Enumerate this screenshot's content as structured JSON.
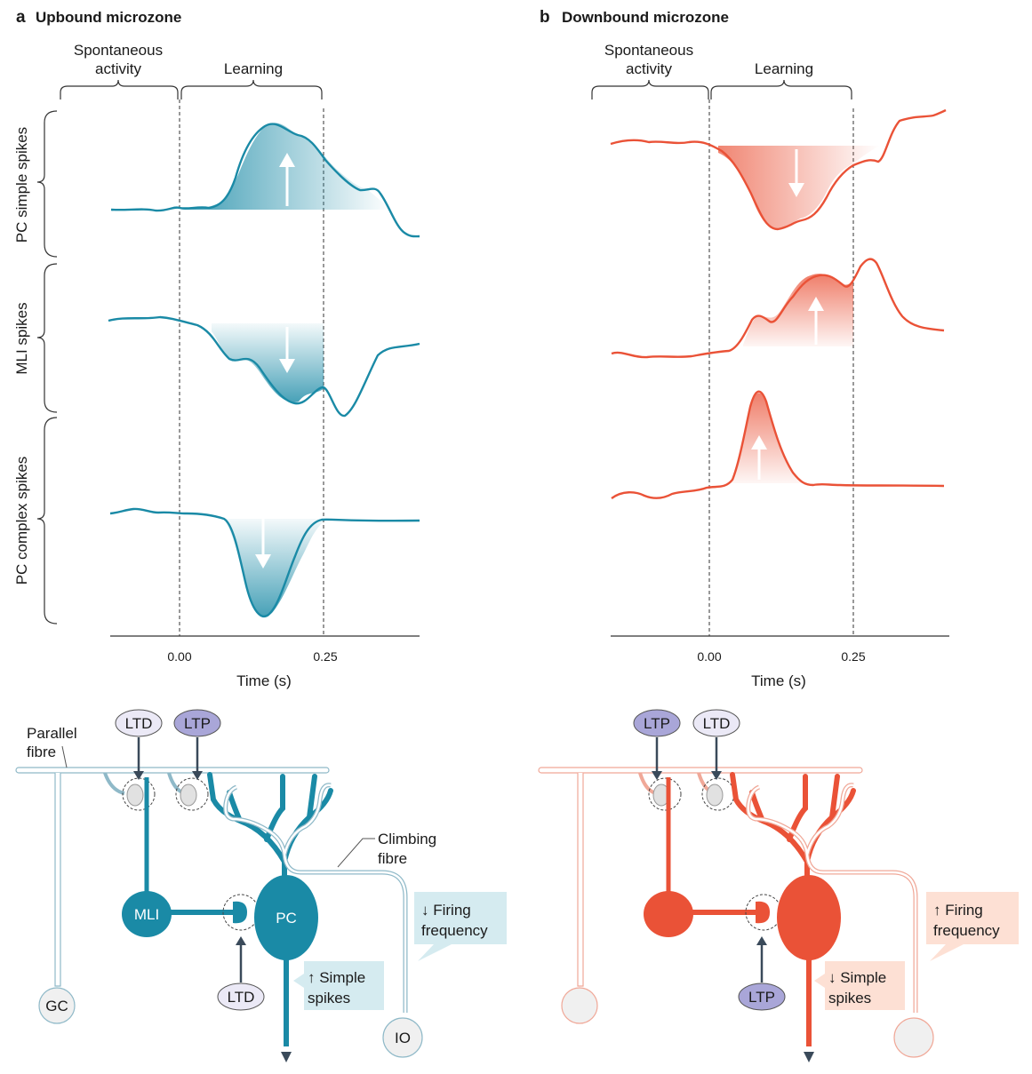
{
  "panels": [
    {
      "letter": "a",
      "title": "Upbound microzone",
      "phase_labels": [
        "Spontaneous",
        "activity",
        "Learning"
      ],
      "row_labels": [
        "PC simple spikes",
        "MLI spikes",
        "PC complex spikes"
      ],
      "x_ticks": [
        "0.00",
        "0.25"
      ],
      "x_label": "Time (s)",
      "circuit": {
        "parallel_fibre": [
          "Parallel",
          "fibre"
        ],
        "climbing_fibre": [
          "Climbing",
          "fibre"
        ],
        "badges": [
          "LTD",
          "LTP",
          "LTD"
        ],
        "cells": [
          "MLI",
          "PC",
          "GC",
          "IO"
        ],
        "callout_firing": [
          "↓ Firing",
          "frequency"
        ],
        "callout_simple": [
          "↑ Simple",
          "spikes"
        ]
      }
    },
    {
      "letter": "b",
      "title": "Downbound microzone",
      "phase_labels": [
        "Spontaneous",
        "activity",
        "Learning"
      ],
      "x_ticks": [
        "0.00",
        "0.25"
      ],
      "x_label": "Time (s)",
      "circuit": {
        "badges": [
          "LTP",
          "LTD",
          "LTP"
        ],
        "callout_firing": [
          "↑ Firing",
          "frequency"
        ],
        "callout_simple": [
          "↓ Simple",
          "spikes"
        ]
      }
    }
  ],
  "colors": {
    "upbound": "#1a8aa6",
    "downbound": "#ea5237",
    "upbound_light": "#d5ebf0",
    "downbound_light": "#fde0d4",
    "ltd_badge": "#ebe9f6",
    "ltp_badge": "#a9a6d8"
  }
}
